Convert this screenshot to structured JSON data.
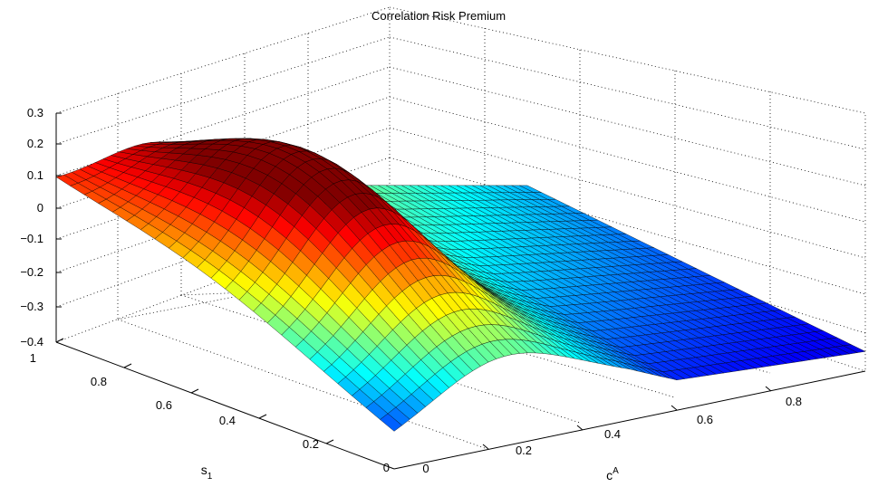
{
  "chart_data": {
    "type": "surface3d",
    "title": "Correlation Risk Premium",
    "xlabel": {
      "base": "c",
      "sup": "A"
    },
    "ylabel": {
      "base": "s",
      "sub": "1"
    },
    "zlabel": "",
    "xlim": [
      0,
      1
    ],
    "ylim": [
      0,
      1
    ],
    "zlim": [
      -0.4,
      0.3
    ],
    "x_ticks": [
      "0",
      "0.2",
      "0.4",
      "0.6",
      "0.8"
    ],
    "y_ticks": [
      "0",
      "0.2",
      "0.4",
      "0.6",
      "0.8",
      "1"
    ],
    "z_ticks": [
      "0.3",
      "0.2",
      "0.1",
      "0",
      "−0.1",
      "−0.2",
      "−0.3",
      "−0.4"
    ],
    "colormap": "jet",
    "grid": true,
    "grid_resolution": {
      "c_steps": 60,
      "s_steps": 24
    },
    "surface_profile": {
      "description_values_at_s_high": {
        "c": [
          0,
          0.1,
          0.25,
          0.5,
          0.75,
          1.0
        ],
        "z": [
          0.08,
          0.06,
          0.02,
          -0.06,
          -0.14,
          -0.2
        ]
      },
      "description_values_at_s_low": {
        "c": [
          0,
          0.1,
          0.25,
          0.5,
          0.75,
          1.0
        ],
        "z": [
          -0.28,
          -0.22,
          -0.18,
          -0.22,
          -0.3,
          -0.37
        ]
      },
      "peak": {
        "c": 0.25,
        "s": 0.45,
        "z": 0.2
      }
    }
  }
}
